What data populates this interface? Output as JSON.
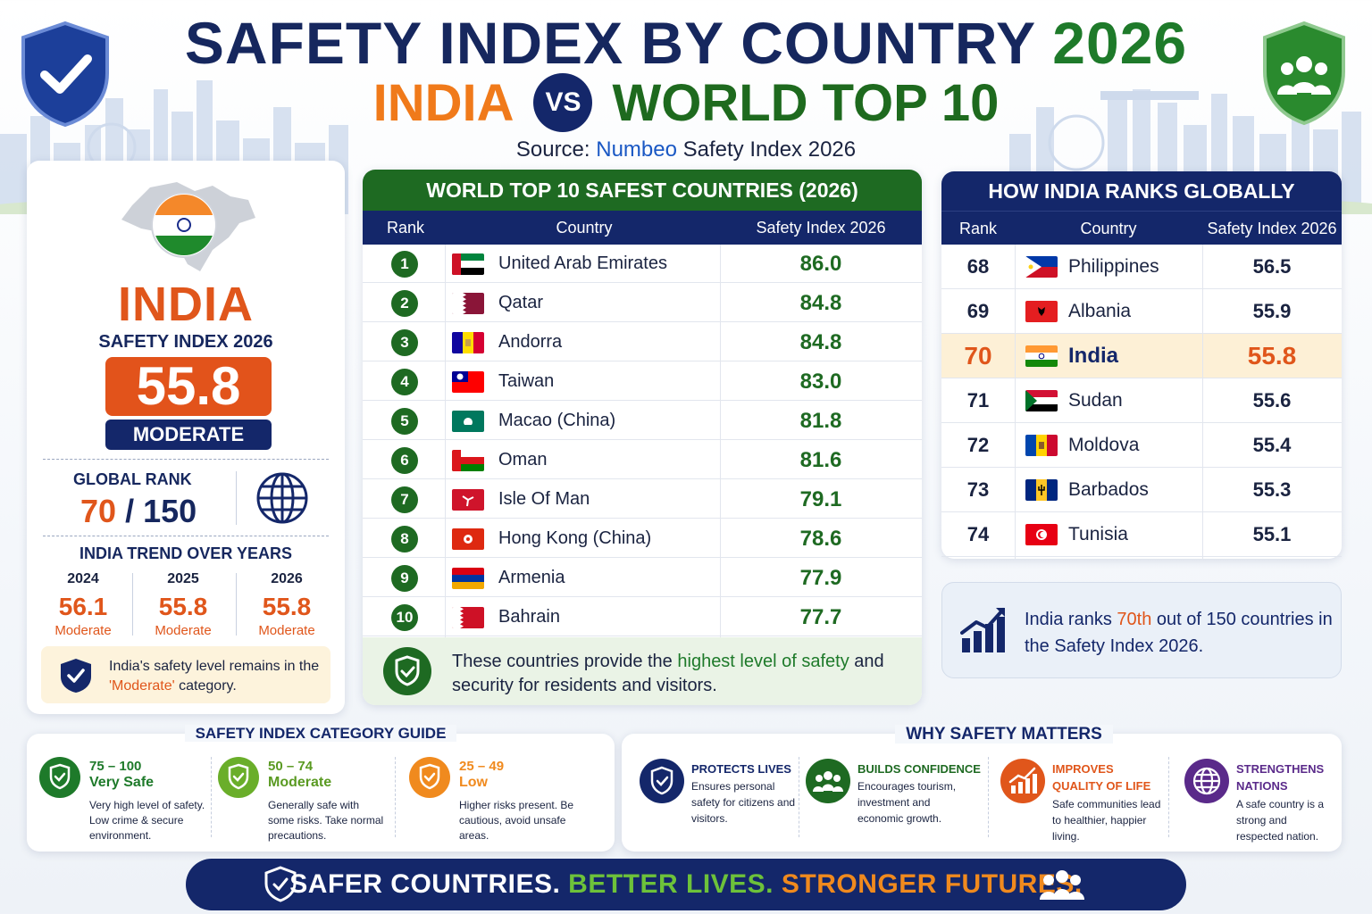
{
  "header": {
    "title_main": "SAFETY INDEX BY COUNTRY",
    "title_year": "2026",
    "subtitle_left": "INDIA",
    "vs_label": "VS",
    "subtitle_right": "WORLD TOP 10",
    "source_prefix": "Source:",
    "source_name": "Numbeo",
    "source_suffix": "Safety Index 2026"
  },
  "india_card": {
    "name": "INDIA",
    "index_label": "SAFETY INDEX 2026",
    "score": "55.8",
    "category": "MODERATE",
    "global_rank_label": "GLOBAL RANK",
    "rank": "70",
    "rank_sep": "/",
    "rank_total": "150",
    "trend_title": "INDIA TREND OVER YEARS",
    "trend": [
      {
        "year": "2024",
        "value": "56.1",
        "category": "Moderate"
      },
      {
        "year": "2025",
        "value": "55.8",
        "category": "Moderate"
      },
      {
        "year": "2026",
        "value": "55.8",
        "category": "Moderate"
      }
    ],
    "note_prefix": "India's safety level remains in the",
    "note_highlight": "'Moderate'",
    "note_suffix": "category."
  },
  "top10": {
    "title": "WORLD TOP 10 SAFEST COUNTRIES (2026)",
    "headers": [
      "Rank",
      "Country",
      "Safety Index 2026"
    ],
    "rows": [
      {
        "rank": "1",
        "country": "United Arab Emirates",
        "score": "86.0"
      },
      {
        "rank": "2",
        "country": "Qatar",
        "score": "84.8"
      },
      {
        "rank": "3",
        "country": "Andorra",
        "score": "84.8"
      },
      {
        "rank": "4",
        "country": "Taiwan",
        "score": "83.0"
      },
      {
        "rank": "5",
        "country": "Macao (China)",
        "score": "81.8"
      },
      {
        "rank": "6",
        "country": "Oman",
        "score": "81.6"
      },
      {
        "rank": "7",
        "country": "Isle Of Man",
        "score": "79.1"
      },
      {
        "rank": "8",
        "country": "Hong Kong (China)",
        "score": "78.6"
      },
      {
        "rank": "9",
        "country": "Armenia",
        "score": "77.9"
      },
      {
        "rank": "10",
        "country": "Bahrain",
        "score": "77.7"
      }
    ],
    "footer_prefix": "These countries provide the",
    "footer_highlight": "highest level of safety",
    "footer_suffix": "and security for residents and visitors."
  },
  "india_ranks": {
    "title": "HOW INDIA RANKS GLOBALLY",
    "headers": [
      "Rank",
      "Country",
      "Safety Index 2026"
    ],
    "rows": [
      {
        "rank": "68",
        "country": "Philippines",
        "score": "56.5"
      },
      {
        "rank": "69",
        "country": "Albania",
        "score": "55.9"
      },
      {
        "rank": "70",
        "country": "India",
        "score": "55.8"
      },
      {
        "rank": "71",
        "country": "Sudan",
        "score": "55.6"
      },
      {
        "rank": "72",
        "country": "Moldova",
        "score": "55.4"
      },
      {
        "rank": "73",
        "country": "Barbados",
        "score": "55.3"
      },
      {
        "rank": "74",
        "country": "Tunisia",
        "score": "55.1"
      }
    ],
    "highlight_rank": "70",
    "summary_prefix": "India ranks",
    "summary_highlight": "70th",
    "summary_suffix": "out of 150 countries in the Safety Index 2026."
  },
  "guide": {
    "title": "SAFETY INDEX CATEGORY GUIDE",
    "items": [
      {
        "range": "75 – 100",
        "label": "Very Safe",
        "desc": "Very high level of safety. Low crime & secure environment.",
        "color": "#1e7a2a"
      },
      {
        "range": "50 – 74",
        "label": "Moderate",
        "desc": "Generally safe with some risks. Take normal precautions.",
        "color": "#6aae2a"
      },
      {
        "range": "25 – 49",
        "label": "Low",
        "desc": "Higher risks present. Be cautious, avoid unsafe areas.",
        "color": "#f08a1e"
      }
    ]
  },
  "why": {
    "title": "WHY SAFETY MATTERS",
    "items": [
      {
        "title": "PROTECTS LIVES",
        "desc": "Ensures personal safety for citizens and visitors.",
        "color": "#14276a",
        "icon": "shield-check-icon"
      },
      {
        "title": "BUILDS CONFIDENCE",
        "desc": "Encourages tourism, investment and economic growth.",
        "color": "#1e6a22",
        "icon": "people-icon"
      },
      {
        "title": "IMPROVES QUALITY OF LIFE",
        "desc": "Safe communities lead to healthier, happier living.",
        "color": "#e0561b",
        "icon": "growth-chart-icon"
      },
      {
        "title": "STRENGTHENS NATIONS",
        "desc": "A safe country is a strong and respected nation.",
        "color": "#5a2a8a",
        "icon": "globe-icon"
      }
    ]
  },
  "banner": {
    "part1": "SAFER COUNTRIES.",
    "part2": "BETTER LIVES.",
    "part3": "STRONGER FUTURES."
  },
  "colors": {
    "navy": "#14276a",
    "green": "#1e6a22",
    "orange": "#e0561b",
    "highlight_row": "#fdf0d6"
  }
}
